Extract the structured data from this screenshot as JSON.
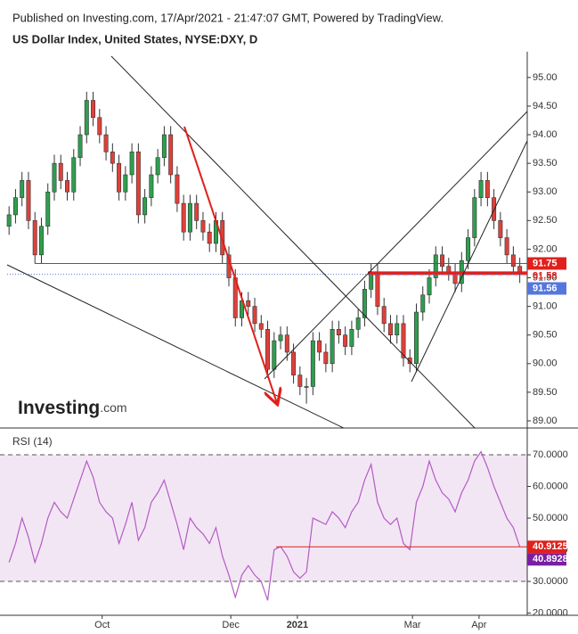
{
  "header": {
    "published": "Published on Investing.com, 17/Apr/2021 - 21:47:07 GMT, Powered by TradingView.",
    "title": "US Dollar Index, United States, NYSE:DXY, D",
    "logo": "Investing",
    "logo_suffix": ".com"
  },
  "chart_data": [
    {
      "type": "candlestick",
      "title": "US Dollar Index",
      "up_color": "#2e9e4f",
      "down_color": "#e0403a",
      "open": [
        92.4,
        92.6,
        92.9,
        93.2,
        92.5,
        91.9,
        92.4,
        93.0,
        93.5,
        93.2,
        93.0,
        93.6,
        94.0,
        94.6,
        94.3,
        94.0,
        93.7,
        93.5,
        93.0,
        93.3,
        93.7,
        92.6,
        92.9,
        93.3,
        93.6,
        94.0,
        93.3,
        92.8,
        92.3,
        92.8,
        92.5,
        92.3,
        92.1,
        92.5,
        91.9,
        91.5,
        90.8,
        91.1,
        91.0,
        90.7,
        90.6,
        89.9,
        90.4,
        90.5,
        90.2,
        89.8,
        89.6,
        89.6,
        90.4,
        90.2,
        90.0,
        90.6,
        90.5,
        90.3,
        90.6,
        90.8,
        91.3,
        91.6,
        91.0,
        90.7,
        90.5,
        90.7,
        90.1,
        90.0,
        90.9,
        91.2,
        91.5,
        91.9,
        91.7,
        91.6,
        91.4,
        91.8,
        92.2,
        92.9,
        93.2,
        92.9,
        92.5,
        92.2,
        91.9,
        91.7
      ],
      "high": [
        92.75,
        93.05,
        93.35,
        93.35,
        92.65,
        92.55,
        93.15,
        93.65,
        93.65,
        93.35,
        93.75,
        94.15,
        94.75,
        94.75,
        94.45,
        94.15,
        93.85,
        93.65,
        93.45,
        93.85,
        93.85,
        93.05,
        93.45,
        93.75,
        94.15,
        94.15,
        93.45,
        92.95,
        92.95,
        92.95,
        92.65,
        92.45,
        92.65,
        92.65,
        92.05,
        91.65,
        91.25,
        91.25,
        91.15,
        90.85,
        90.75,
        90.55,
        90.65,
        90.65,
        90.35,
        89.95,
        89.75,
        90.55,
        90.55,
        90.35,
        90.75,
        90.75,
        90.65,
        90.75,
        90.95,
        91.45,
        91.75,
        91.75,
        91.15,
        90.85,
        90.85,
        90.85,
        90.25,
        91.05,
        91.35,
        91.65,
        92.05,
        92.05,
        91.85,
        91.75,
        91.95,
        92.35,
        93.05,
        93.35,
        93.35,
        93.05,
        92.65,
        92.35,
        92.05,
        91.85
      ],
      "low": [
        92.25,
        92.45,
        92.75,
        92.35,
        91.75,
        91.75,
        92.25,
        92.85,
        93.05,
        92.85,
        92.85,
        93.45,
        93.85,
        94.15,
        93.85,
        93.55,
        93.35,
        92.85,
        92.85,
        93.15,
        92.45,
        92.45,
        92.75,
        93.15,
        93.45,
        93.15,
        92.65,
        92.15,
        92.15,
        92.35,
        92.15,
        91.95,
        91.95,
        91.75,
        91.35,
        90.65,
        90.65,
        90.85,
        90.55,
        90.45,
        89.75,
        89.75,
        90.25,
        90.05,
        89.65,
        89.45,
        89.3,
        89.45,
        90.05,
        89.85,
        89.85,
        90.35,
        90.15,
        90.15,
        90.45,
        90.65,
        91.15,
        90.85,
        90.55,
        90.35,
        90.35,
        89.95,
        89.85,
        89.85,
        90.75,
        91.05,
        91.35,
        91.55,
        91.45,
        91.25,
        91.25,
        91.65,
        92.05,
        92.75,
        92.75,
        92.35,
        92.05,
        91.75,
        91.55,
        91.41
      ],
      "close": [
        92.6,
        92.9,
        93.2,
        92.5,
        91.9,
        92.4,
        93.0,
        93.5,
        93.2,
        93.0,
        93.6,
        94.0,
        94.6,
        94.3,
        94.0,
        93.7,
        93.5,
        93.0,
        93.3,
        93.7,
        92.6,
        92.9,
        93.3,
        93.6,
        94.0,
        93.3,
        92.8,
        92.3,
        92.8,
        92.5,
        92.3,
        92.1,
        92.5,
        91.9,
        91.5,
        90.8,
        91.1,
        91.0,
        90.7,
        90.6,
        89.9,
        90.4,
        90.5,
        90.2,
        89.8,
        89.6,
        89.6,
        90.4,
        90.2,
        90.0,
        90.6,
        90.5,
        90.3,
        90.6,
        90.8,
        91.3,
        91.6,
        91.0,
        90.7,
        90.5,
        90.7,
        90.1,
        90.0,
        90.9,
        91.2,
        91.5,
        91.9,
        91.7,
        91.6,
        91.4,
        91.8,
        92.2,
        92.9,
        93.2,
        92.9,
        92.5,
        92.2,
        91.9,
        91.7,
        91.56
      ],
      "xlim": [
        -0.3,
        79.6
      ],
      "xticks": [
        {
          "value": 14.4,
          "label": "Oct"
        },
        {
          "value": 34.3,
          "label": "Dec"
        },
        {
          "value": 44.6,
          "label": "2021"
        },
        {
          "value": 62.4,
          "label": "Mar"
        },
        {
          "value": 72.7,
          "label": "Apr"
        }
      ],
      "ylim": [
        88.875,
        95.45
      ],
      "yticks": [
        {
          "value": 89,
          "label": "89.00"
        },
        {
          "value": 89.5,
          "label": "89.50"
        },
        {
          "value": 90,
          "label": "90.00"
        },
        {
          "value": 90.5,
          "label": "90.50"
        },
        {
          "value": 91,
          "label": "91.00"
        },
        {
          "value": 91.5,
          "label": "91.50"
        },
        {
          "value": 92,
          "label": "92.00"
        },
        {
          "value": 92.5,
          "label": "92.50"
        },
        {
          "value": 93,
          "label": "93.00"
        },
        {
          "value": 93.5,
          "label": "93.50"
        },
        {
          "value": 94,
          "label": "94.00"
        },
        {
          "value": 94.5,
          "label": "94.50"
        },
        {
          "value": 95,
          "label": "95.00"
        }
      ],
      "levels": [
        {
          "value": 91.75,
          "label": "91.75",
          "color": "#e0201b",
          "box": true,
          "from": 4
        },
        {
          "value": 91.58,
          "label": "91.58",
          "color": "#e0201b",
          "box": false,
          "from": 55.5,
          "thick": true
        },
        {
          "value": 91.56,
          "label": "91.56",
          "color": "#5577dd",
          "box": true,
          "from": -0.3,
          "dotted": true
        }
      ]
    },
    {
      "type": "line",
      "title": "RSI (14)",
      "color": "#b25cc4",
      "band_color": "#f3e6f4",
      "values": [
        36,
        42,
        50,
        44,
        36,
        42,
        50,
        55,
        52,
        50,
        56,
        62,
        68,
        63,
        55,
        52,
        50,
        42,
        48,
        55,
        43,
        47,
        55,
        58,
        62,
        55,
        48,
        40,
        50,
        47,
        45,
        42,
        47,
        38,
        32,
        25,
        32,
        35,
        32,
        30,
        24,
        40,
        41,
        38,
        33,
        31,
        33,
        50,
        49,
        48,
        52,
        50,
        47,
        52,
        55,
        62,
        67,
        55,
        50,
        48,
        50,
        42,
        40,
        55,
        60,
        68,
        62,
        58,
        56,
        52,
        58,
        62,
        68,
        71,
        66,
        60,
        55,
        50,
        47,
        40.8928
      ],
      "ylim": [
        19.3,
        77.9
      ],
      "yticks": [
        {
          "value": 20,
          "label": "20.0000"
        },
        {
          "value": 30,
          "label": "30.0000"
        },
        {
          "value": 40,
          "label": "40.0000"
        },
        {
          "value": 50,
          "label": "50.0000"
        },
        {
          "value": 60,
          "label": "60.0000"
        },
        {
          "value": 70,
          "label": "70.0000"
        }
      ],
      "band": [
        30,
        70
      ],
      "levels": [
        {
          "value": 40.9125,
          "label": "40.9125",
          "color": "#e0201b",
          "box": true,
          "from": 41.3
        },
        {
          "value": 40.8928,
          "label": "40.8928",
          "color": "#7a1fa2",
          "box": true,
          "from": null
        }
      ]
    }
  ]
}
